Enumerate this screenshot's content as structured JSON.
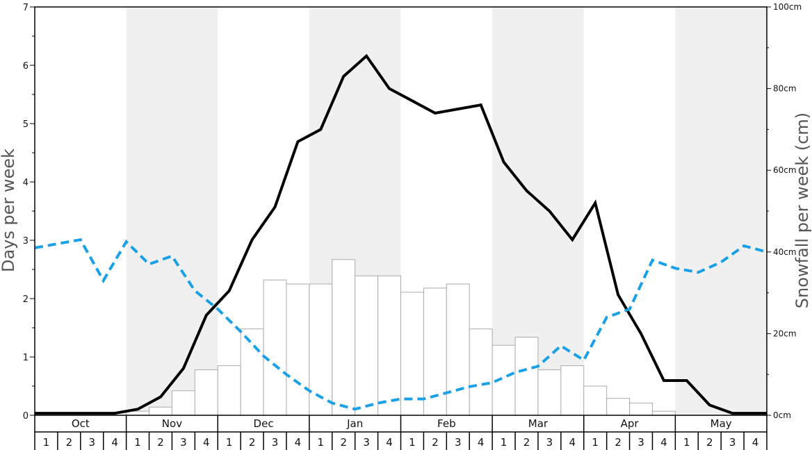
{
  "chart_data": {
    "type": "bar",
    "ylabel_left": "Days per week",
    "ylabel_right": "Snowfall per week (cm)",
    "y_left_range": [
      0,
      7
    ],
    "y_left_ticks": [
      "0",
      "1",
      "2",
      "3",
      "4",
      "5",
      "6",
      "7"
    ],
    "y_right_range": [
      0,
      100
    ],
    "y_right_ticks": [
      "0cm",
      "20cm",
      "40cm",
      "60cm",
      "80cm",
      "100cm"
    ],
    "months": [
      "Oct",
      "Nov",
      "Dec",
      "Jan",
      "Feb",
      "Mar",
      "Apr",
      "May"
    ],
    "week_labels": [
      "1",
      "2",
      "3",
      "4"
    ],
    "shaded_months": [
      "Nov",
      "Jan",
      "Mar",
      "May"
    ],
    "colors": {
      "bars_fill": "#ffffff",
      "bars_stroke": "#aaaaaa",
      "snow_line": "#000000",
      "dashed_line": "#1aa0e6",
      "shade": "#f0f0f0",
      "frame": "#000000"
    },
    "series": [
      {
        "kind": "bars",
        "axis": "left",
        "values": [
          0,
          0,
          0,
          0,
          0.07,
          0.14,
          0.42,
          0.78,
          0.85,
          1.48,
          2.32,
          2.25,
          2.25,
          2.67,
          2.39,
          2.39,
          2.11,
          2.18,
          2.25,
          1.48,
          1.2,
          1.34,
          0.78,
          0.85,
          0.5,
          0.29,
          0.21,
          0.07,
          0,
          0,
          0,
          0
        ]
      },
      {
        "kind": "line",
        "axis": "right",
        "values": [
          0.5,
          0.5,
          0.5,
          0.5,
          1.5,
          4.5,
          11.5,
          24.5,
          30.5,
          43,
          51,
          67,
          70,
          83,
          88,
          80,
          77,
          74,
          75,
          76,
          62,
          55,
          50,
          43,
          52,
          29.5,
          20,
          8.5,
          8.5,
          2.5,
          0.5,
          0.5
        ]
      },
      {
        "kind": "dashed",
        "axis": "right",
        "values": [
          41,
          42,
          43,
          33,
          42.5,
          37,
          39,
          30.5,
          26,
          20.5,
          14.5,
          10,
          6,
          3,
          1.5,
          3,
          4,
          4,
          5.5,
          7,
          8,
          10.5,
          12,
          17,
          13.5,
          24,
          26,
          38,
          36,
          35,
          37.5,
          41.5,
          40
        ]
      }
    ]
  }
}
